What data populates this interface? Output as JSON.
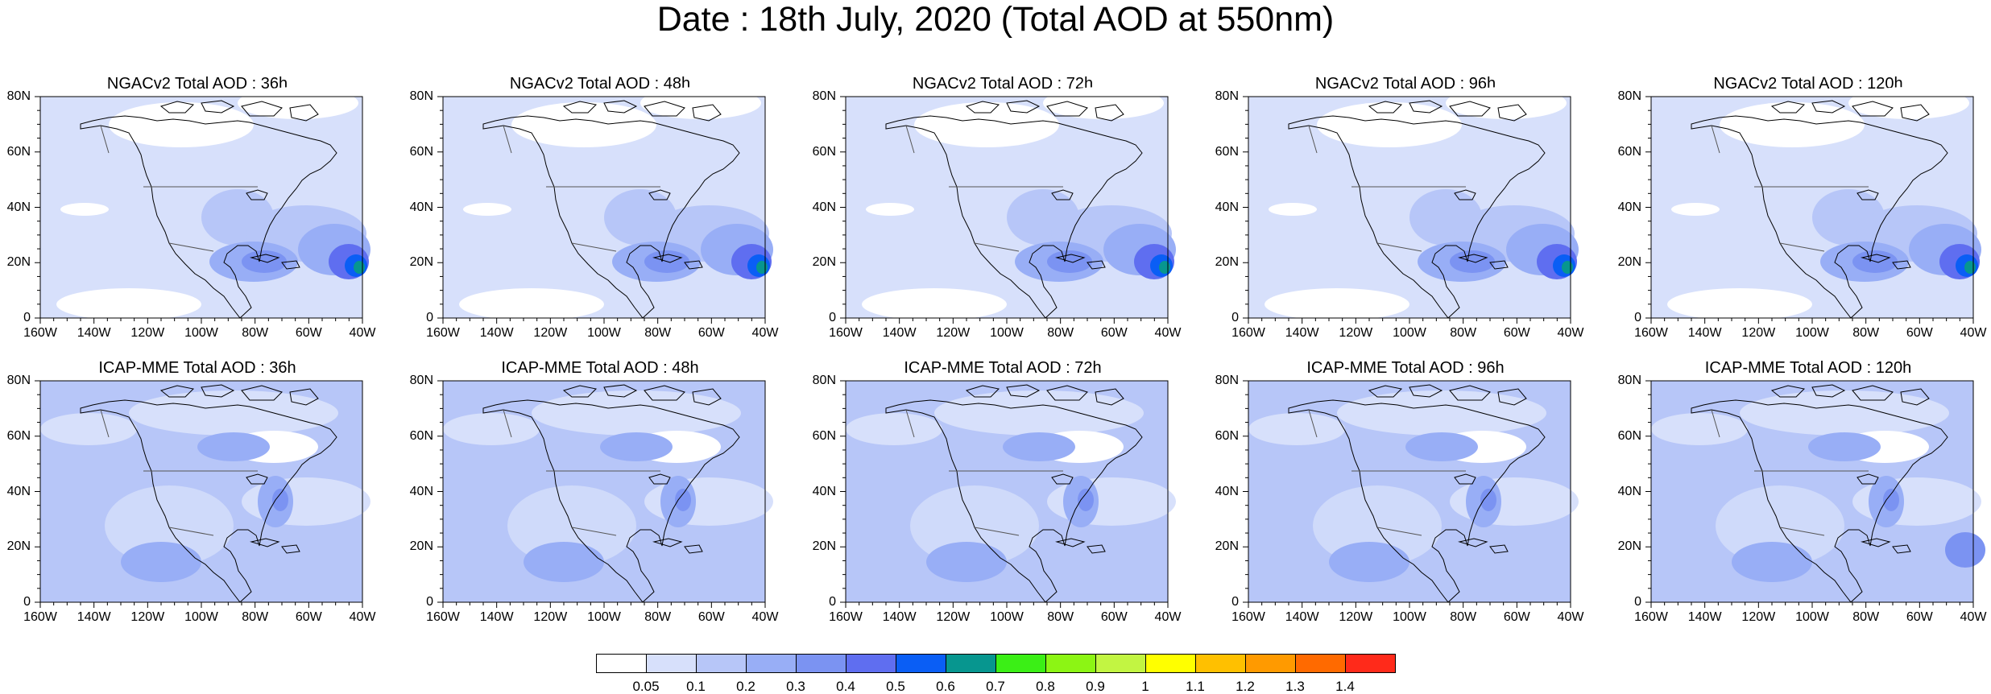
{
  "title": "Date : 18th July, 2020 (Total AOD at 550nm)",
  "lat_labels": [
    "80N",
    "60N",
    "40N",
    "20N",
    "0"
  ],
  "lon_labels": [
    "160W",
    "140W",
    "120W",
    "100W",
    "80W",
    "60W",
    "40W"
  ],
  "panels": [
    {
      "title": "NGACv2 Total AOD : 36h",
      "model": "NGACv2",
      "lead": "36h"
    },
    {
      "title": "NGACv2 Total AOD : 48h",
      "model": "NGACv2",
      "lead": "48h"
    },
    {
      "title": "NGACv2 Total AOD : 72h",
      "model": "NGACv2",
      "lead": "72h"
    },
    {
      "title": "NGACv2 Total AOD : 96h",
      "model": "NGACv2",
      "lead": "96h"
    },
    {
      "title": "NGACv2 Total AOD : 120h",
      "model": "NGACv2",
      "lead": "120h"
    },
    {
      "title": "ICAP-MME Total AOD : 36h",
      "model": "ICAP-MME",
      "lead": "36h"
    },
    {
      "title": "ICAP-MME Total AOD : 48h",
      "model": "ICAP-MME",
      "lead": "48h"
    },
    {
      "title": "ICAP-MME Total AOD : 72h",
      "model": "ICAP-MME",
      "lead": "72h"
    },
    {
      "title": "ICAP-MME Total AOD : 96h",
      "model": "ICAP-MME",
      "lead": "96h"
    },
    {
      "title": "ICAP-MME Total AOD : 120h",
      "model": "ICAP-MME",
      "lead": "120h"
    }
  ],
  "colorbar": {
    "labels": [
      "0.05",
      "0.1",
      "0.2",
      "0.3",
      "0.4",
      "0.5",
      "0.6",
      "0.7",
      "0.8",
      "0.9",
      "1",
      "1.1",
      "1.2",
      "1.3",
      "1.4"
    ],
    "colors": [
      "#ffffff",
      "#d7e0fb",
      "#b7c6f8",
      "#98aef6",
      "#7b93f2",
      "#5f6ef0",
      "#0a5ef5",
      "#07968f",
      "#3bef16",
      "#8cf514",
      "#c2f542",
      "#ffff00",
      "#ffc000",
      "#ff9a00",
      "#ff6a00",
      "#ff2a1a"
    ]
  }
}
